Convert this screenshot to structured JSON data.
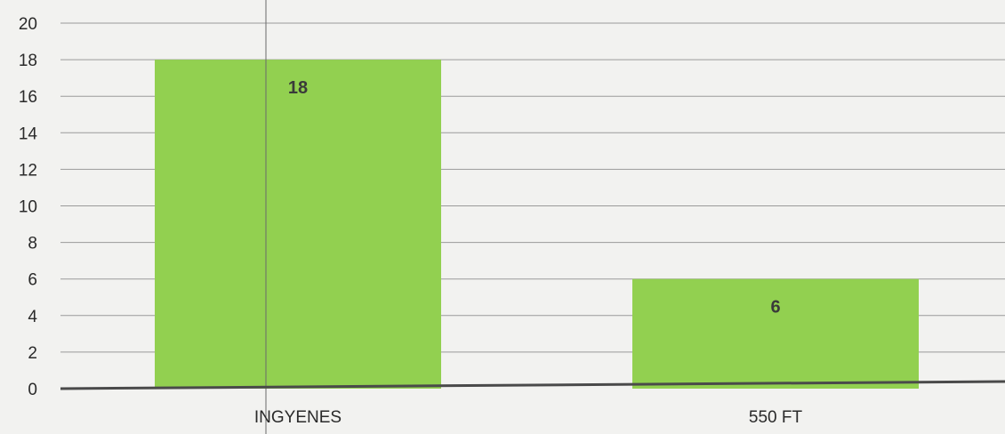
{
  "chart_data": {
    "type": "bar",
    "categories": [
      "INGYENES",
      "550 FT"
    ],
    "values": [
      18,
      6
    ],
    "data_labels": [
      "18",
      "6"
    ],
    "title": "",
    "xlabel": "",
    "ylabel": "",
    "ylim": [
      0,
      20
    ],
    "yticks": [
      0,
      2,
      4,
      6,
      8,
      10,
      12,
      14,
      16,
      18,
      20
    ],
    "grid": true,
    "legend": "none",
    "colors": {
      "bar": "#92d050",
      "grid": "#9a9a9a",
      "axis": "#4a4a4a",
      "background": "#f2f2f0"
    }
  }
}
